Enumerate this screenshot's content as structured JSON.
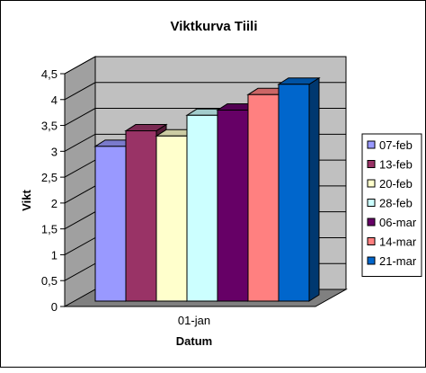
{
  "chart_data": {
    "type": "bar",
    "title": "Viktkurva Tiili",
    "xlabel": "Datum",
    "ylabel": "Vikt",
    "categories": [
      "01-jan"
    ],
    "ylim": [
      0,
      4.5
    ],
    "yticks": [
      "0",
      "0,5",
      "1",
      "1,5",
      "2",
      "2,5",
      "3",
      "3,5",
      "4",
      "4,5"
    ],
    "grid": true,
    "legend_position": "right",
    "series": [
      {
        "name": "07-feb",
        "values": [
          3.2
        ],
        "color": "#9999ff"
      },
      {
        "name": "13-feb",
        "values": [
          3.5
        ],
        "color": "#993366"
      },
      {
        "name": "20-feb",
        "values": [
          3.4
        ],
        "color": "#ffffcc"
      },
      {
        "name": "28-feb",
        "values": [
          3.8
        ],
        "color": "#ccffff"
      },
      {
        "name": "06-mar",
        "values": [
          3.9
        ],
        "color": "#660066"
      },
      {
        "name": "14-mar",
        "values": [
          4.2
        ],
        "color": "#ff8080"
      },
      {
        "name": "21-mar",
        "values": [
          4.4
        ],
        "color": "#0066cc"
      }
    ]
  }
}
